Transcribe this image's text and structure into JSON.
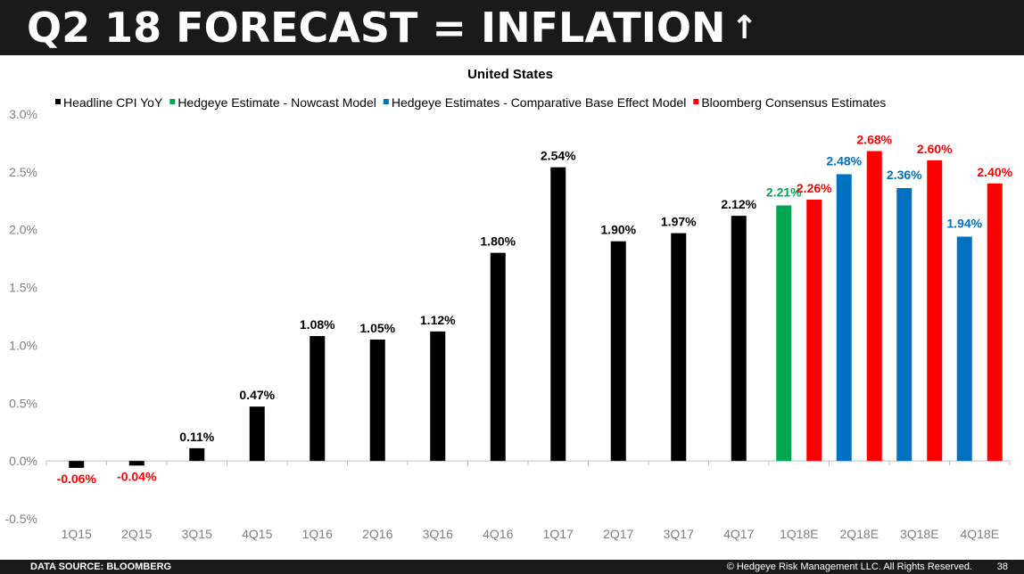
{
  "header": {
    "title": "Q2 18 FORECAST = INFLATION",
    "arrow": "↑"
  },
  "footer": {
    "source": "DATA SOURCE: BLOOMBERG",
    "copyright": "© Hedgeye Risk Management LLC. All Rights Reserved.",
    "page_number": "38"
  },
  "colors": {
    "headline": "#000000",
    "nowcast": "#00a651",
    "comparative": "#0070c0",
    "bloomberg": "#ff0000",
    "header_bg": "#1a1a1a"
  },
  "chart_data": {
    "type": "bar",
    "title": "United States",
    "xlabel": "",
    "ylabel": "",
    "ylim": [
      -0.5,
      3.0
    ],
    "yticks": [
      "3.0%",
      "2.5%",
      "2.0%",
      "1.5%",
      "1.0%",
      "0.5%",
      "0.0%",
      "-0.5%"
    ],
    "ytick_values": [
      3.0,
      2.5,
      2.0,
      1.5,
      1.0,
      0.5,
      0.0,
      -0.5
    ],
    "categories": [
      "1Q15",
      "2Q15",
      "3Q15",
      "4Q15",
      "1Q16",
      "2Q16",
      "3Q16",
      "4Q16",
      "1Q17",
      "2Q17",
      "3Q17",
      "4Q17",
      "1Q18E",
      "2Q18E",
      "3Q18E",
      "4Q18E"
    ],
    "legend_position": "top",
    "series": [
      {
        "name": "Headline CPI YoY",
        "color_key": "headline",
        "values": [
          -0.06,
          -0.04,
          0.11,
          0.47,
          1.08,
          1.05,
          1.12,
          1.8,
          2.54,
          1.9,
          1.97,
          2.12,
          null,
          null,
          null,
          null
        ],
        "labels": [
          "-0.06%",
          "-0.04%",
          "0.11%",
          "0.47%",
          "1.08%",
          "1.05%",
          "1.12%",
          "1.80%",
          "2.54%",
          "1.90%",
          "1.97%",
          "2.12%",
          null,
          null,
          null,
          null
        ]
      },
      {
        "name": "Hedgeye Estimate - Nowcast Model",
        "color_key": "nowcast",
        "values": [
          null,
          null,
          null,
          null,
          null,
          null,
          null,
          null,
          null,
          null,
          null,
          null,
          2.21,
          null,
          null,
          null
        ],
        "labels": [
          null,
          null,
          null,
          null,
          null,
          null,
          null,
          null,
          null,
          null,
          null,
          null,
          "2.21%",
          null,
          null,
          null
        ]
      },
      {
        "name": "Hedgeye Estimates - Comparative Base Effect Model",
        "color_key": "comparative",
        "values": [
          null,
          null,
          null,
          null,
          null,
          null,
          null,
          null,
          null,
          null,
          null,
          null,
          null,
          2.48,
          2.36,
          1.94
        ],
        "labels": [
          null,
          null,
          null,
          null,
          null,
          null,
          null,
          null,
          null,
          null,
          null,
          null,
          null,
          "2.48%",
          "2.36%",
          "1.94%"
        ]
      },
      {
        "name": "Bloomberg Consensus Estimates",
        "color_key": "bloomberg",
        "values": [
          null,
          null,
          null,
          null,
          null,
          null,
          null,
          null,
          null,
          null,
          null,
          null,
          2.26,
          2.68,
          2.6,
          2.4
        ],
        "labels": [
          null,
          null,
          null,
          null,
          null,
          null,
          null,
          null,
          null,
          null,
          null,
          null,
          "2.26%",
          "2.68%",
          "2.60%",
          "2.40%"
        ]
      }
    ]
  }
}
